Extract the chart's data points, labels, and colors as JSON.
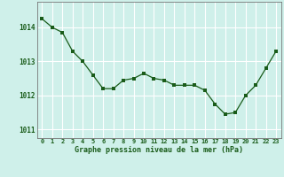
{
  "x": [
    0,
    1,
    2,
    3,
    4,
    5,
    6,
    7,
    8,
    9,
    10,
    11,
    12,
    13,
    14,
    15,
    16,
    17,
    18,
    19,
    20,
    21,
    22,
    23
  ],
  "y": [
    1014.25,
    1014.0,
    1013.85,
    1013.3,
    1013.0,
    1012.6,
    1012.2,
    1012.2,
    1012.45,
    1012.5,
    1012.65,
    1012.5,
    1012.45,
    1012.3,
    1012.3,
    1012.3,
    1012.15,
    1011.75,
    1011.45,
    1011.5,
    1012.0,
    1012.3,
    1012.8,
    1013.3
  ],
  "line_color": "#1a5c1a",
  "marker": "s",
  "marker_size": 2.5,
  "background_color": "#cff0ea",
  "grid_color": "#ffffff",
  "xlabel": "Graphe pression niveau de la mer (hPa)",
  "xlabel_color": "#1a5c1a",
  "tick_label_color": "#1a5c1a",
  "ylim": [
    1010.75,
    1014.75
  ],
  "yticks": [
    1011,
    1012,
    1013,
    1014
  ],
  "xlim": [
    -0.5,
    23.5
  ],
  "xticks": [
    0,
    1,
    2,
    3,
    4,
    5,
    6,
    7,
    8,
    9,
    10,
    11,
    12,
    13,
    14,
    15,
    16,
    17,
    18,
    19,
    20,
    21,
    22,
    23
  ]
}
